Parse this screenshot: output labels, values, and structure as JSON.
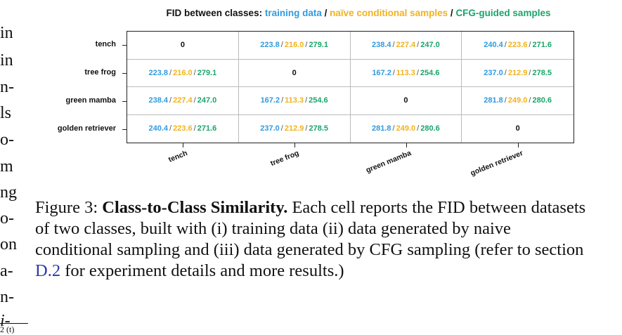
{
  "left_margin_fragments": [
    "in",
    "in",
    "n-",
    "ls",
    "o-",
    "m",
    "ng",
    "o-",
    "on",
    "a-",
    "n-",
    "i-"
  ],
  "left_margin_footnote": "2 (t)",
  "chart_data": {
    "type": "table",
    "title": {
      "prefix": "FID between classes: ",
      "training": "training data",
      "sep1": " / ",
      "naive": "naïve conditional samples",
      "sep2": " / ",
      "cfg": "CFG-guided samples"
    },
    "rows": [
      "tench",
      "tree frog",
      "green mamba",
      "golden retriever"
    ],
    "columns": [
      "tench",
      "tree frog",
      "green mamba",
      "golden retriever"
    ],
    "cells": [
      [
        null,
        [
          223.8,
          216.0,
          279.1
        ],
        [
          238.4,
          227.4,
          247.0
        ],
        [
          240.4,
          223.6,
          271.6
        ]
      ],
      [
        [
          223.8,
          216.0,
          279.1
        ],
        null,
        [
          167.2,
          113.3,
          254.6
        ],
        [
          237.0,
          212.9,
          278.5
        ]
      ],
      [
        [
          238.4,
          227.4,
          247.0
        ],
        [
          167.2,
          113.3,
          254.6
        ],
        null,
        [
          281.8,
          249.0,
          280.6
        ]
      ],
      [
        [
          240.4,
          223.6,
          271.6
        ],
        [
          237.0,
          212.9,
          278.5
        ],
        [
          281.8,
          249.0,
          280.6
        ],
        null
      ]
    ],
    "diagonal_value": "0",
    "colors": {
      "training": "#2f9be0",
      "naive": "#f2b21c",
      "cfg": "#1aa56a"
    }
  },
  "caption": {
    "figure_label": "Figure 3: ",
    "bold_title": "Class-to-Class Similarity.",
    "text_before_link": " Each cell reports the FID between datasets of two classes, built with (i) training data (ii) data generated by naive conditional sampling and (iii) data generated by CFG sampling (refer to section ",
    "link_text": "D.2",
    "text_after_link": " for experiment details and more results.)"
  }
}
